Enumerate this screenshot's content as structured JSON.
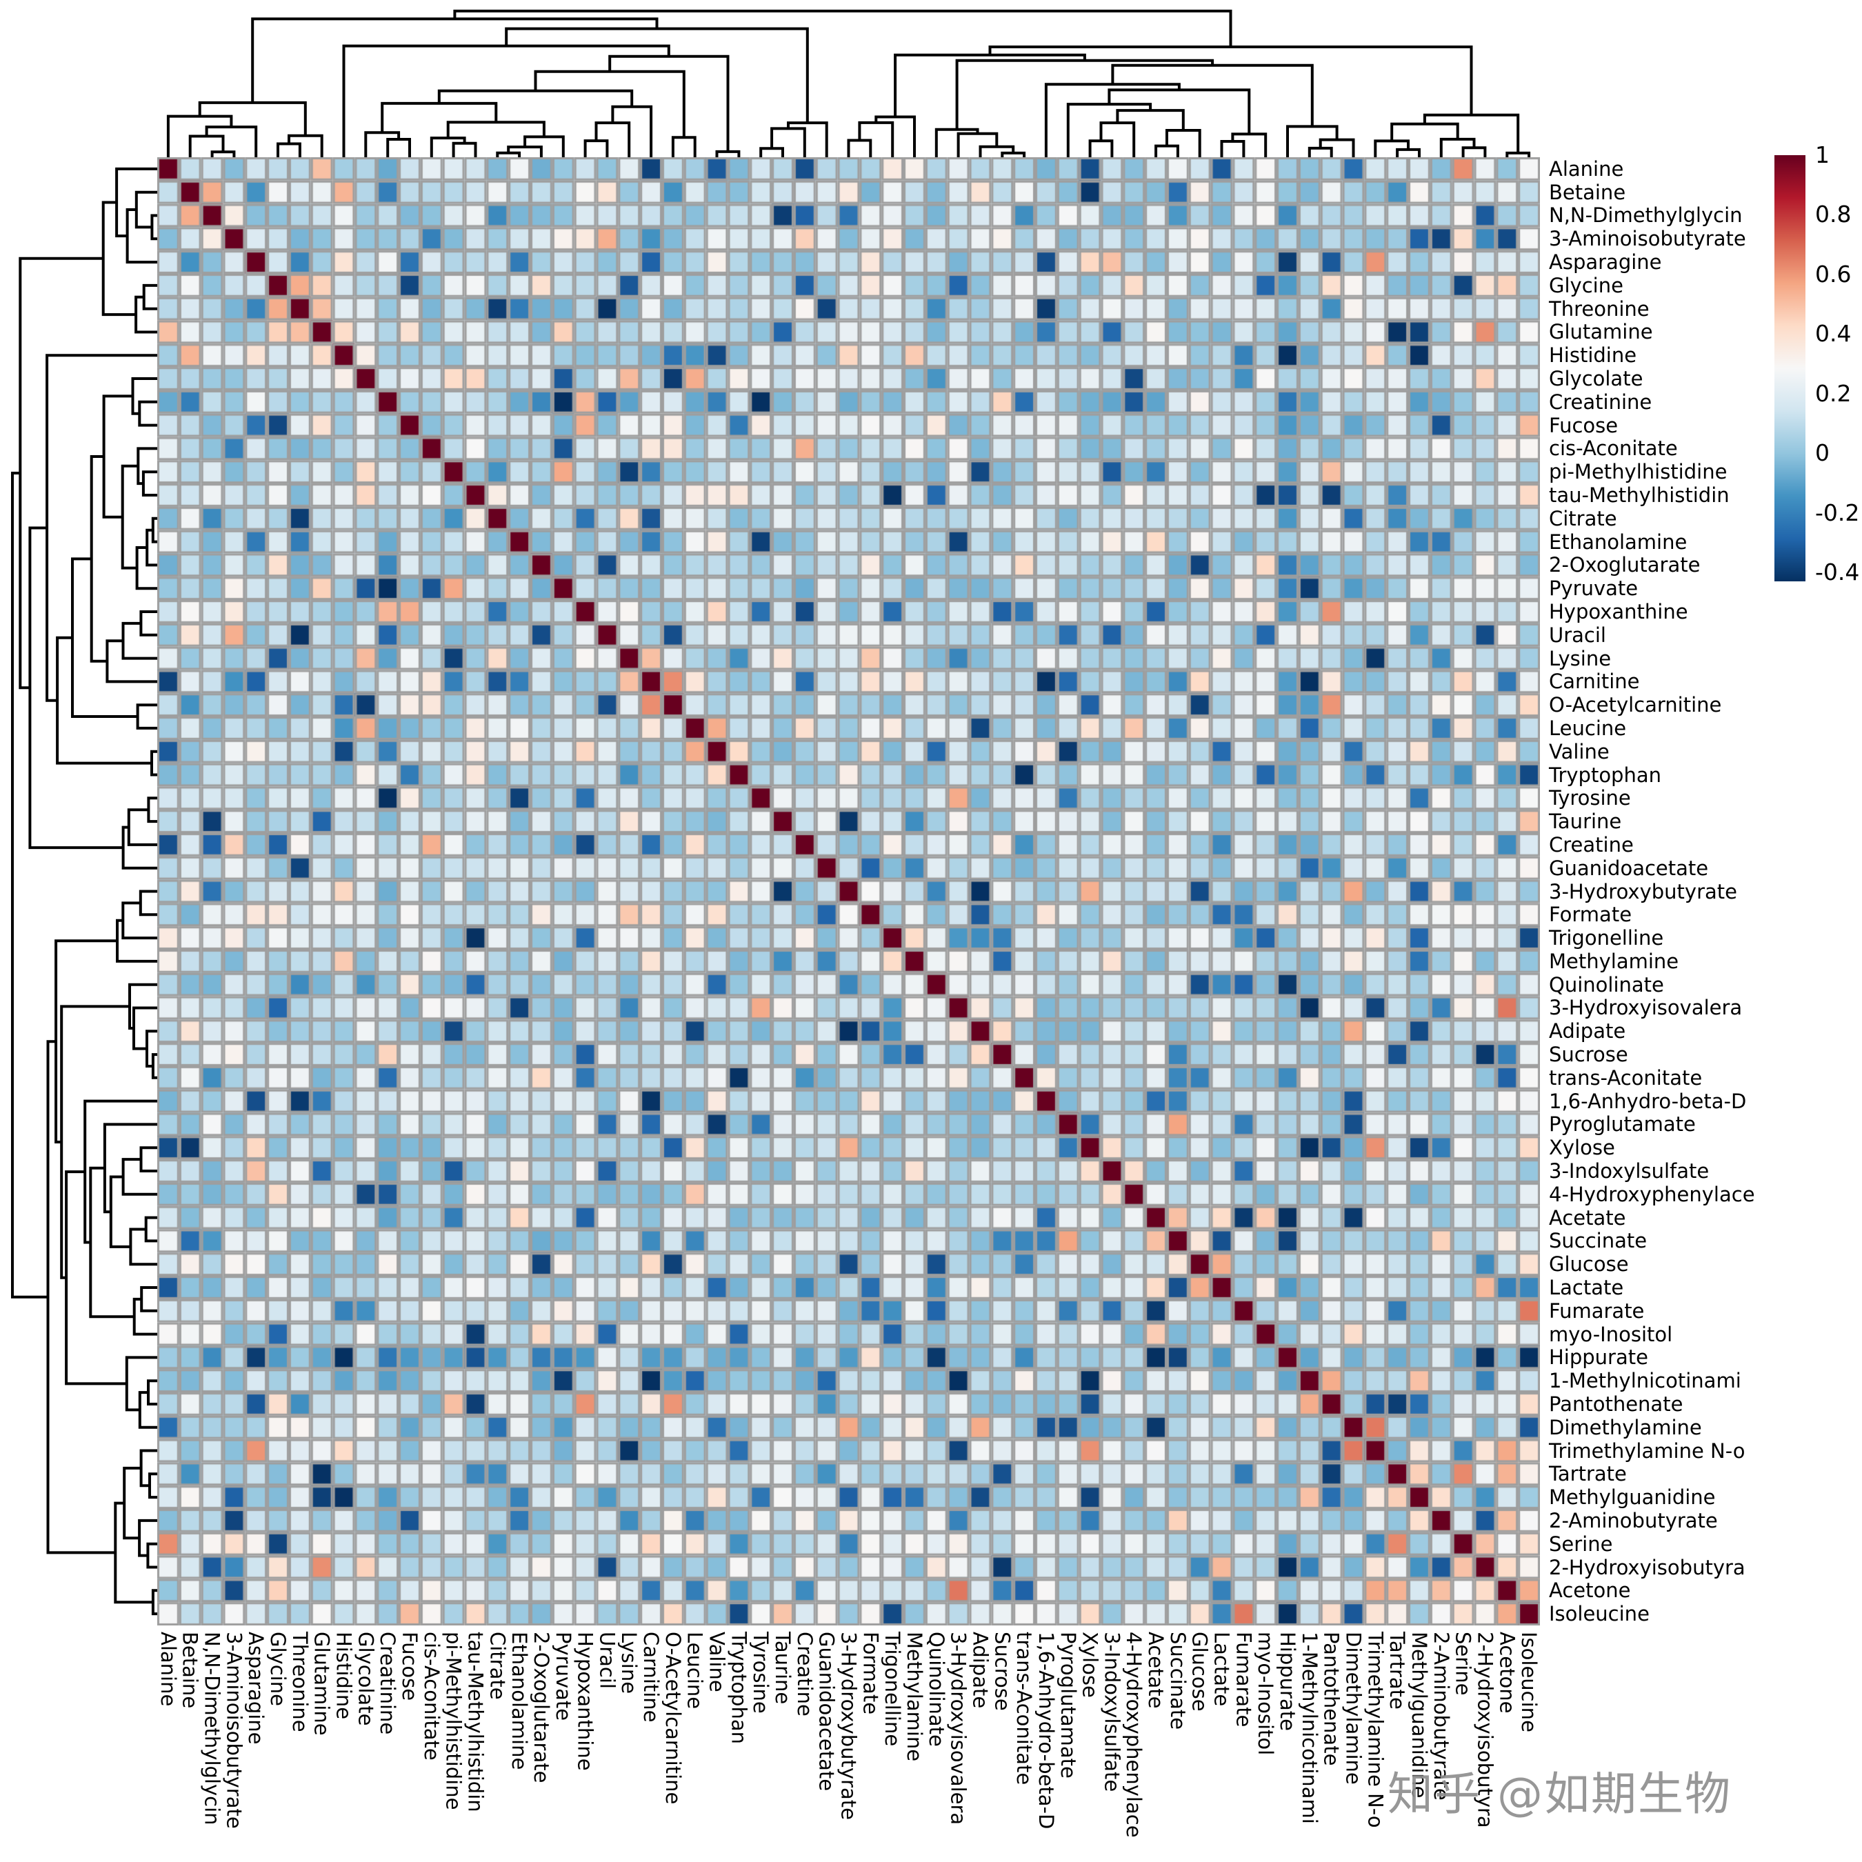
{
  "figure": {
    "background": "#ffffff",
    "description": "Hierarchically clustered correlation heatmap (clustermap) of 63 urine metabolites with row and column dendrograms and a colorbar"
  },
  "watermark": {
    "text": "知乎 @如期生物",
    "color": "#8f8f8f"
  },
  "colorbar": {
    "vmin": -0.43,
    "vmax": 1,
    "colormap": "RdBu_r",
    "gradient_anchors_low_to_high": [
      "#053061",
      "#2166ac",
      "#4393c3",
      "#92c5de",
      "#d1e5f0",
      "#f7f7f7",
      "#fddbc7",
      "#f4a582",
      "#d6604d",
      "#b2182b",
      "#67001f"
    ],
    "ticks": [
      {
        "label": "1",
        "value": 1
      },
      {
        "label": "0.8",
        "value": 0.8
      },
      {
        "label": "0.6",
        "value": 0.6
      },
      {
        "label": "0.4",
        "value": 0.4
      },
      {
        "label": "0.2",
        "value": 0.2
      },
      {
        "label": "0",
        "value": 0
      },
      {
        "label": "-0.2",
        "value": -0.2
      },
      {
        "label": "-0.4",
        "value": -0.4
      }
    ]
  },
  "chart_data": {
    "type": "heatmap",
    "subtype": "clustered-correlation-matrix",
    "title": "",
    "xlabel": "",
    "ylabel": "",
    "legend_position": "colorbar top-right",
    "grid_color": "#9e9e9e",
    "labels": [
      "Alanine",
      "Betaine",
      "N,N-Dimethylglycin",
      "3-Aminoisobutyrate",
      "Asparagine",
      "Glycine",
      "Threonine",
      "Glutamine",
      "Histidine",
      "Glycolate",
      "Creatinine",
      "Fucose",
      "cis-Aconitate",
      "pi-Methylhistidine",
      "tau-Methylhistidin",
      "Citrate",
      "Ethanolamine",
      "2-Oxoglutarate",
      "Pyruvate",
      "Hypoxanthine",
      "Uracil",
      "Lysine",
      "Carnitine",
      "O-Acetylcarnitine",
      "Leucine",
      "Valine",
      "Tryptophan",
      "Tyrosine",
      "Taurine",
      "Creatine",
      "Guanidoacetate",
      "3-Hydroxybutyrate",
      "Formate",
      "Trigonelline",
      "Methylamine",
      "Quinolinate",
      "3-Hydroxyisovalera",
      "Adipate",
      "Sucrose",
      "trans-Aconitate",
      "1,6-Anhydro-beta-D",
      "Pyroglutamate",
      "Xylose",
      "3-Indoxylsulfate",
      "4-Hydroxyphenylace",
      "Acetate",
      "Succinate",
      "Glucose",
      "Lactate",
      "Fumarate",
      "myo-Inositol",
      "Hippurate",
      "1-Methylnicotinami",
      "Pantothenate",
      "Dimethylamine",
      "Trimethylamine N-o",
      "Tartrate",
      "Methylguanidine",
      "2-Aminobutyrate",
      "Serine",
      "2-Hydroxyisobutyra",
      "Acetone",
      "Isoleucine"
    ],
    "matrix": {
      "size": 63,
      "symmetric": true,
      "diagonal_value": 1,
      "value_range": [
        -0.43,
        1
      ],
      "generation": {
        "seed": 11,
        "base_min": -0.05,
        "base_span": 0.32,
        "p_negative": 0.1,
        "neg_floor": -0.43,
        "p_pale": 0.06,
        "p_warm": 0.025,
        "near_diag_boost": 0.1
      },
      "row_bias": {
        "10": -0.07,
        "17": -0.06,
        "18": -0.05,
        "51": -0.13,
        "52": -0.07,
        "54": -0.05,
        "59": 0.04,
        "61": 0.05,
        "62": 0.05
      },
      "strong_pairs": [
        [
          0,
          7,
          0.5
        ],
        [
          1,
          2,
          0.55
        ],
        [
          5,
          6,
          0.55
        ],
        [
          5,
          7,
          0.45
        ],
        [
          6,
          7,
          0.5
        ],
        [
          7,
          8,
          0.42
        ],
        [
          21,
          22,
          0.5
        ],
        [
          22,
          23,
          0.62
        ],
        [
          24,
          25,
          0.55
        ],
        [
          25,
          26,
          0.42
        ],
        [
          33,
          34,
          0.42
        ],
        [
          37,
          38,
          0.42
        ],
        [
          42,
          43,
          0.4
        ],
        [
          43,
          44,
          0.4
        ],
        [
          45,
          46,
          0.5
        ],
        [
          45,
          48,
          0.42
        ],
        [
          47,
          48,
          0.55
        ],
        [
          52,
          53,
          0.55
        ],
        [
          54,
          55,
          0.66
        ],
        [
          57,
          58,
          0.4
        ],
        [
          58,
          61,
          0.5
        ],
        [
          60,
          61,
          0.42
        ],
        [
          61,
          62,
          0.55
        ]
      ]
    },
    "dendrogram": {
      "line_color": "#000000",
      "line_width": 4,
      "seed": 5,
      "sides": [
        "top",
        "left"
      ]
    },
    "axis": {
      "row_labels_side": "right",
      "col_labels_side": "bottom",
      "col_label_rotation_deg": 90
    }
  }
}
